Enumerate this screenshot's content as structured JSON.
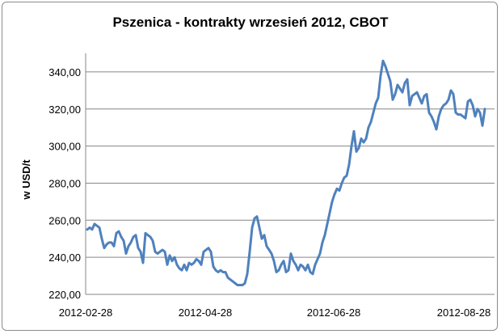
{
  "chart_data": {
    "type": "line",
    "title": "Pszenica - kontrakty wrzesień 2012, CBOT",
    "ylabel": "w USD/t",
    "xlabel": "",
    "ylim": [
      220,
      350
    ],
    "yticks": [
      "220,00",
      "240,00",
      "260,00",
      "280,00",
      "300,00",
      "320,00",
      "340,00"
    ],
    "ytick_values": [
      220,
      240,
      260,
      280,
      300,
      320,
      340
    ],
    "xticks": [
      "2012-02-28",
      "2012-04-28",
      "2012-06-28",
      "2012-08-28"
    ],
    "grid": "horizontal",
    "legend": "none",
    "line_color": "#4f81bd",
    "series": [
      {
        "values": [
          255,
          256,
          255,
          258,
          257,
          256,
          250,
          245,
          247,
          248,
          248,
          246,
          253,
          254,
          251,
          249,
          242,
          246,
          248,
          251,
          252,
          245,
          243,
          237,
          253,
          252,
          251,
          249,
          243,
          242,
          243,
          244,
          243,
          236,
          241,
          238,
          240,
          236,
          234,
          233,
          236,
          233,
          237,
          236,
          237,
          239,
          238,
          236,
          243,
          244,
          245,
          243,
          235,
          233,
          232,
          233,
          232,
          232,
          229,
          228,
          227,
          226,
          225,
          225,
          225,
          226,
          231,
          243,
          256,
          261,
          262,
          256,
          250,
          252,
          246,
          244,
          242,
          238,
          232,
          233,
          236,
          238,
          232,
          233,
          242,
          238,
          236,
          233,
          236,
          235,
          233,
          236,
          232,
          231,
          236,
          239,
          242,
          248,
          252,
          258,
          264,
          270,
          274,
          277,
          276,
          280,
          283,
          284,
          290,
          300,
          308,
          297,
          299,
          304,
          302,
          304,
          310,
          313,
          318,
          323,
          326,
          338,
          346,
          343,
          339,
          335,
          325,
          328,
          333,
          331,
          329,
          334,
          336,
          322,
          327,
          328,
          329,
          326,
          323,
          327,
          328,
          318,
          316,
          313,
          309,
          316,
          320,
          322,
          323,
          325,
          330,
          328,
          318,
          317,
          317,
          316,
          315,
          324,
          325,
          322,
          316,
          320,
          318,
          311,
          320
        ]
      }
    ]
  }
}
